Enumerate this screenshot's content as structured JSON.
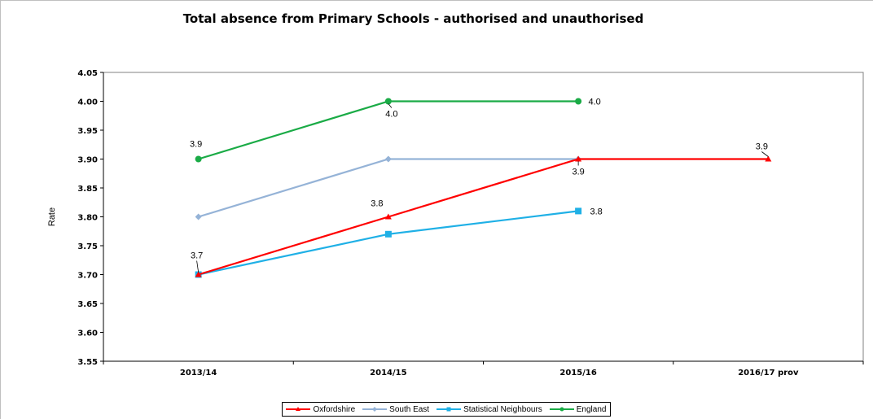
{
  "chart_data": {
    "type": "line",
    "title": "Total absence from Primary Schools - authorised and unauthorised",
    "ylabel": "Rate",
    "xlabel": "",
    "categories": [
      "2013/14",
      "2014/15",
      "2015/16",
      "2016/17 prov"
    ],
    "ylim": [
      3.55,
      4.05
    ],
    "yticks": [
      "3.55",
      "3.60",
      "3.65",
      "3.70",
      "3.75",
      "3.80",
      "3.85",
      "3.90",
      "3.95",
      "4.00",
      "4.05"
    ],
    "grid": "horizontal-top-only",
    "legend_position": "bottom",
    "series": [
      {
        "name": "Oxfordshire",
        "color": "#ff0000",
        "marker": "triangle",
        "values": [
          3.7,
          3.8,
          3.9,
          3.9
        ],
        "labels": [
          "3.7",
          "3.8",
          "3.9",
          "3.9"
        ]
      },
      {
        "name": "South East",
        "color": "#95b3d7",
        "marker": "diamond",
        "values": [
          3.8,
          3.9,
          3.9,
          null
        ],
        "labels": []
      },
      {
        "name": "Statistical Neighbours",
        "color": "#1fb0e6",
        "marker": "square",
        "values": [
          3.7,
          3.77,
          3.81,
          null
        ],
        "labels": [
          "",
          "",
          "3.8",
          ""
        ]
      },
      {
        "name": "England",
        "color": "#1aab46",
        "marker": "circle",
        "values": [
          3.9,
          4.0,
          4.0,
          null
        ],
        "labels": [
          "3.9",
          "4.0",
          "4.0",
          ""
        ]
      }
    ]
  }
}
